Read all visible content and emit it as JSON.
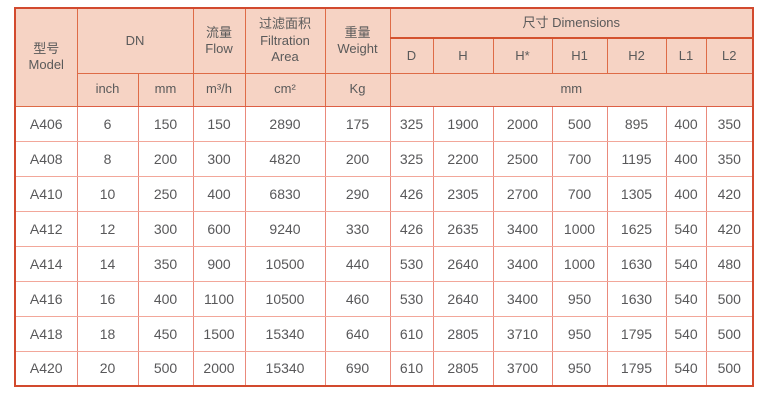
{
  "colors": {
    "header_background": "#f6d3c4",
    "outer_border": "#d24a2e",
    "header_border": "#de6b47",
    "body_border_vertical": "#ea8a7c",
    "body_border_horizontal": "#f2a79a",
    "text": "#5a5a5a"
  },
  "table": {
    "header": {
      "model": "型号\nModel",
      "dn": "DN",
      "flow": "流量\nFlow",
      "filtration_area": "过滤面积\nFiltration\nArea",
      "weight": "重量\nWeight",
      "dimensions": "尺寸 Dimensions",
      "dimension_columns": [
        "D",
        "H",
        "H*",
        "H1",
        "H2",
        "L1",
        "L2"
      ],
      "unit_inch": "inch",
      "unit_mm": "mm",
      "unit_flow": "m³/h",
      "unit_area": "cm²",
      "unit_weight": "Kg",
      "unit_dimensions": "mm"
    },
    "rows": [
      [
        "A406",
        "6",
        "150",
        "150",
        "2890",
        "175",
        "325",
        "1900",
        "2000",
        "500",
        "895",
        "400",
        "350"
      ],
      [
        "A408",
        "8",
        "200",
        "300",
        "4820",
        "200",
        "325",
        "2200",
        "2500",
        "700",
        "1195",
        "400",
        "350"
      ],
      [
        "A410",
        "10",
        "250",
        "400",
        "6830",
        "290",
        "426",
        "2305",
        "2700",
        "700",
        "1305",
        "400",
        "420"
      ],
      [
        "A412",
        "12",
        "300",
        "600",
        "9240",
        "330",
        "426",
        "2635",
        "3400",
        "1000",
        "1625",
        "540",
        "420"
      ],
      [
        "A414",
        "14",
        "350",
        "900",
        "10500",
        "440",
        "530",
        "2640",
        "3400",
        "1000",
        "1630",
        "540",
        "480"
      ],
      [
        "A416",
        "16",
        "400",
        "1100",
        "10500",
        "460",
        "530",
        "2640",
        "3400",
        "950",
        "1630",
        "540",
        "500"
      ],
      [
        "A418",
        "18",
        "450",
        "1500",
        "15340",
        "640",
        "610",
        "2805",
        "3710",
        "950",
        "1795",
        "540",
        "500"
      ],
      [
        "A420",
        "20",
        "500",
        "2000",
        "15340",
        "690",
        "610",
        "2805",
        "3700",
        "950",
        "1795",
        "540",
        "500"
      ]
    ]
  }
}
